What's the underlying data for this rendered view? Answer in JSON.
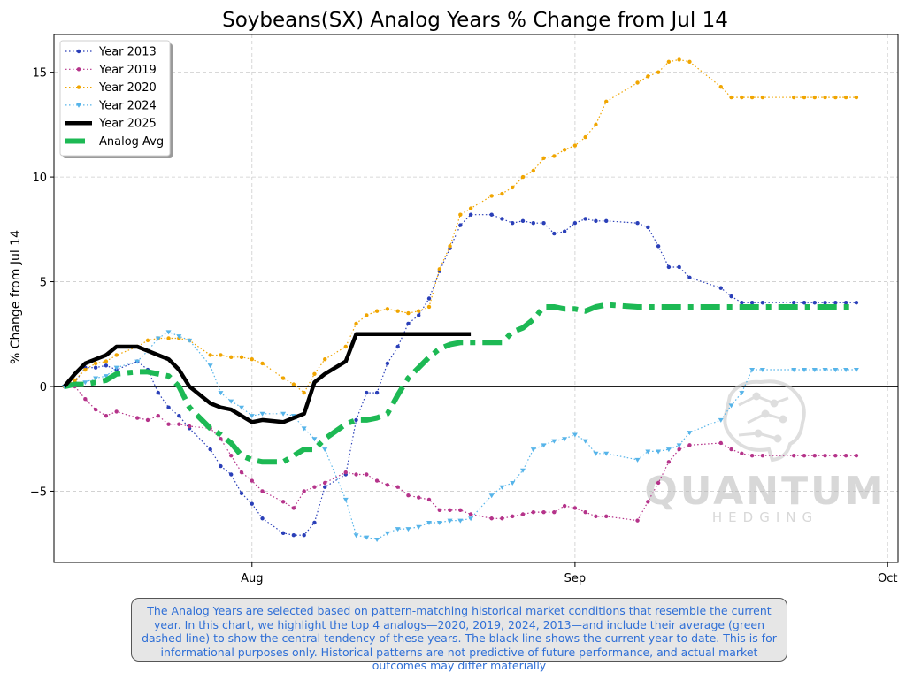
{
  "chart_data": {
    "type": "line",
    "title": "Soybeans(SX) Analog Years % Change from Jul 14",
    "xlabel": "",
    "ylabel": "% Change from Jul 14",
    "x_unit": "days after Jul 14",
    "xlim": [
      -1,
      80
    ],
    "ylim": [
      -8.4,
      16.8
    ],
    "x_ticks": [
      {
        "value": 18,
        "label": "Aug"
      },
      {
        "value": 49,
        "label": "Sep"
      },
      {
        "value": 79,
        "label": "Oct"
      }
    ],
    "y_ticks": [
      {
        "value": -5,
        "label": "−5"
      },
      {
        "value": 0,
        "label": "0"
      },
      {
        "value": 5,
        "label": "5"
      },
      {
        "value": 10,
        "label": "10"
      },
      {
        "value": 15,
        "label": "15"
      }
    ],
    "grid": true,
    "legend_position": "top-left",
    "zero_line": true,
    "series": [
      {
        "name": "Year 2013",
        "color": "#2a3fb8",
        "style": "dotted",
        "marker": "circle",
        "x": [
          0,
          1,
          2,
          3,
          4,
          5,
          7,
          8,
          9,
          10,
          11,
          12,
          14,
          15,
          16,
          17,
          18,
          19,
          21,
          22,
          23,
          24,
          25,
          27,
          28,
          29,
          30,
          31,
          32,
          33,
          34,
          35,
          36,
          37,
          38,
          39,
          41,
          42,
          43,
          44,
          45,
          46,
          47,
          48,
          49,
          50,
          51,
          52,
          55,
          56,
          57,
          58,
          59,
          60,
          63,
          64,
          65,
          66,
          67,
          70,
          71,
          72,
          73,
          74,
          75,
          76
        ],
        "y": [
          0,
          0.2,
          0.9,
          0.9,
          1,
          0.8,
          1.2,
          0.8,
          -0.3,
          -1,
          -1.4,
          -2,
          -3,
          -3.8,
          -4.2,
          -5.1,
          -5.6,
          -6.3,
          -7,
          -7.1,
          -7.1,
          -6.5,
          -4.8,
          -4.2,
          -1.6,
          -0.3,
          -0.3,
          1.1,
          1.9,
          3,
          3.4,
          4.2,
          5.5,
          6.6,
          7.7,
          8.2,
          8.2,
          8,
          7.8,
          7.9,
          7.8,
          7.8,
          7.3,
          7.4,
          7.8,
          8,
          7.9,
          7.9,
          7.8,
          7.6,
          6.7,
          5.7,
          5.7,
          5.2,
          4.7,
          4.3,
          4,
          4,
          4,
          4,
          4,
          4,
          4,
          4,
          4,
          4
        ]
      },
      {
        "name": "Year 2019",
        "color": "#b5338a",
        "style": "dotted",
        "marker": "circle",
        "x": [
          0,
          1,
          2,
          3,
          4,
          5,
          7,
          8,
          9,
          10,
          11,
          12,
          14,
          15,
          16,
          17,
          18,
          19,
          21,
          22,
          23,
          24,
          25,
          27,
          28,
          29,
          30,
          31,
          32,
          33,
          34,
          35,
          36,
          37,
          38,
          39,
          41,
          42,
          43,
          44,
          45,
          46,
          47,
          48,
          49,
          50,
          51,
          52,
          55,
          56,
          57,
          58,
          59,
          60,
          63,
          64,
          65,
          66,
          67,
          70,
          71,
          72,
          73,
          74,
          75,
          76
        ],
        "y": [
          0,
          0,
          -0.6,
          -1.1,
          -1.4,
          -1.2,
          -1.5,
          -1.6,
          -1.4,
          -1.8,
          -1.8,
          -1.9,
          -2,
          -2.5,
          -3.3,
          -4.1,
          -4.5,
          -5,
          -5.5,
          -5.8,
          -5,
          -4.8,
          -4.6,
          -4.1,
          -4.2,
          -4.2,
          -4.5,
          -4.7,
          -4.8,
          -5.2,
          -5.3,
          -5.4,
          -5.9,
          -5.9,
          -5.9,
          -6.1,
          -6.3,
          -6.3,
          -6.2,
          -6.1,
          -6,
          -6,
          -6,
          -5.7,
          -5.8,
          -6,
          -6.2,
          -6.2,
          -6.4,
          -5.5,
          -4.6,
          -3.6,
          -3,
          -2.8,
          -2.7,
          -3,
          -3.2,
          -3.3,
          -3.3,
          -3.3,
          -3.3,
          -3.3,
          -3.3,
          -3.3,
          -3.3,
          -3.3
        ]
      },
      {
        "name": "Year 2020",
        "color": "#f0a500",
        "style": "dotted",
        "marker": "circle",
        "x": [
          0,
          1,
          2,
          3,
          4,
          5,
          7,
          8,
          9,
          10,
          11,
          12,
          14,
          15,
          16,
          17,
          18,
          19,
          21,
          22,
          23,
          24,
          25,
          27,
          28,
          29,
          30,
          31,
          32,
          33,
          34,
          35,
          36,
          37,
          38,
          39,
          41,
          42,
          43,
          44,
          45,
          46,
          47,
          48,
          49,
          50,
          51,
          52,
          55,
          56,
          57,
          58,
          59,
          60,
          63,
          64,
          65,
          66,
          67,
          70,
          71,
          72,
          73,
          74,
          75,
          76
        ],
        "y": [
          0,
          0.3,
          0.8,
          1.1,
          1.2,
          1.5,
          1.9,
          2.2,
          2.3,
          2.3,
          2.3,
          2.2,
          1.5,
          1.5,
          1.4,
          1.4,
          1.3,
          1.1,
          0.4,
          0.1,
          -0.3,
          0.6,
          1.3,
          1.9,
          3,
          3.4,
          3.6,
          3.7,
          3.6,
          3.5,
          3.6,
          3.8,
          5.6,
          6.7,
          8.2,
          8.5,
          9.1,
          9.2,
          9.5,
          10,
          10.3,
          10.9,
          11,
          11.3,
          11.5,
          11.9,
          12.5,
          13.6,
          14.5,
          14.8,
          15,
          15.5,
          15.6,
          15.5,
          14.3,
          13.8,
          13.8,
          13.8,
          13.8,
          13.8,
          13.8,
          13.8,
          13.8,
          13.8,
          13.8,
          13.8
        ]
      },
      {
        "name": "Year 2024",
        "color": "#56b4e9",
        "style": "dotted",
        "marker": "triangle",
        "x": [
          0,
          1,
          2,
          3,
          4,
          5,
          7,
          8,
          9,
          10,
          11,
          12,
          14,
          15,
          16,
          17,
          18,
          19,
          21,
          22,
          23,
          24,
          25,
          27,
          28,
          29,
          30,
          31,
          32,
          33,
          34,
          35,
          36,
          37,
          38,
          39,
          41,
          42,
          43,
          44,
          45,
          46,
          47,
          48,
          49,
          50,
          51,
          52,
          55,
          56,
          57,
          58,
          59,
          60,
          63,
          64,
          65,
          66,
          67,
          70,
          71,
          72,
          73,
          74,
          75,
          76
        ],
        "y": [
          0,
          0.1,
          0.2,
          0.4,
          0.5,
          0.9,
          1.2,
          1.7,
          2.3,
          2.6,
          2.4,
          2.2,
          1,
          -0.3,
          -0.7,
          -1,
          -1.4,
          -1.3,
          -1.3,
          -1.4,
          -2,
          -2.5,
          -3,
          -5.4,
          -7.1,
          -7.2,
          -7.3,
          -7,
          -6.8,
          -6.8,
          -6.7,
          -6.5,
          -6.5,
          -6.4,
          -6.4,
          -6.3,
          -5.2,
          -4.8,
          -4.6,
          -4,
          -3,
          -2.8,
          -2.6,
          -2.5,
          -2.3,
          -2.6,
          -3.2,
          -3.2,
          -3.5,
          -3.1,
          -3.1,
          -3,
          -2.8,
          -2.2,
          -1.6,
          -0.9,
          -0.3,
          0.8,
          0.8,
          0.8,
          0.8,
          0.8,
          0.8,
          0.8,
          0.8,
          0.8
        ]
      },
      {
        "name": "Year 2025",
        "color": "#000000",
        "style": "solid",
        "marker": "none",
        "x": [
          0,
          1,
          2,
          3,
          4,
          5,
          7,
          8,
          9,
          10,
          11,
          12,
          14,
          15,
          16,
          17,
          18,
          19,
          21,
          22,
          23,
          24,
          25,
          27,
          28,
          29,
          30,
          31,
          32,
          33,
          34,
          35,
          36,
          37,
          38,
          39
        ],
        "y": [
          0,
          0.6,
          1.1,
          1.3,
          1.5,
          1.9,
          1.9,
          1.7,
          1.5,
          1.3,
          0.8,
          0,
          -0.8,
          -1,
          -1.1,
          -1.4,
          -1.7,
          -1.6,
          -1.7,
          -1.5,
          -1.3,
          0.2,
          0.6,
          1.2,
          2.5,
          2.5,
          2.5,
          2.5,
          2.5,
          2.5,
          2.5,
          2.5,
          2.5,
          2.5,
          2.5,
          2.5
        ]
      },
      {
        "name": "Analog Avg",
        "color": "#1db954",
        "style": "dashdot",
        "marker": "none",
        "x": [
          0,
          1,
          2,
          3,
          4,
          5,
          7,
          8,
          9,
          10,
          11,
          12,
          14,
          15,
          16,
          17,
          18,
          19,
          21,
          22,
          23,
          24,
          25,
          27,
          28,
          29,
          30,
          31,
          32,
          33,
          34,
          35,
          36,
          37,
          38,
          39,
          41,
          42,
          43,
          44,
          45,
          46,
          47,
          48,
          49,
          50,
          51,
          52,
          55,
          56,
          57,
          58,
          59,
          60,
          63,
          64,
          65,
          66,
          67,
          70,
          71,
          72,
          73,
          74,
          75,
          76
        ],
        "y": [
          0,
          0.1,
          0.1,
          0.2,
          0.3,
          0.6,
          0.7,
          0.7,
          0.6,
          0.5,
          0,
          -1,
          -2,
          -2.3,
          -2.7,
          -3.3,
          -3.5,
          -3.6,
          -3.6,
          -3.3,
          -3,
          -3,
          -2.5,
          -1.8,
          -1.6,
          -1.6,
          -1.5,
          -1.3,
          -0.4,
          0.4,
          0.9,
          1.4,
          1.8,
          2,
          2.1,
          2.1,
          2.1,
          2.1,
          2.6,
          2.8,
          3.2,
          3.8,
          3.8,
          3.7,
          3.7,
          3.6,
          3.8,
          3.9,
          3.8,
          3.8,
          3.8,
          3.8,
          3.8,
          3.8,
          3.8,
          3.8,
          3.8,
          3.8,
          3.8,
          3.8,
          3.8,
          3.8,
          3.8,
          3.8,
          3.8,
          3.8
        ]
      }
    ]
  },
  "logo": {
    "brand": "QUANTUM",
    "sub": "HEDGING"
  },
  "note": "The Analog Years are selected based on pattern-matching historical market conditions that resemble the current year. In this chart, we highlight the top 4 analogs—2020, 2019, 2024, 2013—and include their average (green dashed line) to show the central tendency of these years. The black line shows the current year to date. This is for informational purposes only. Historical patterns are not predictive of future performance, and actual market outcomes may differ materially"
}
